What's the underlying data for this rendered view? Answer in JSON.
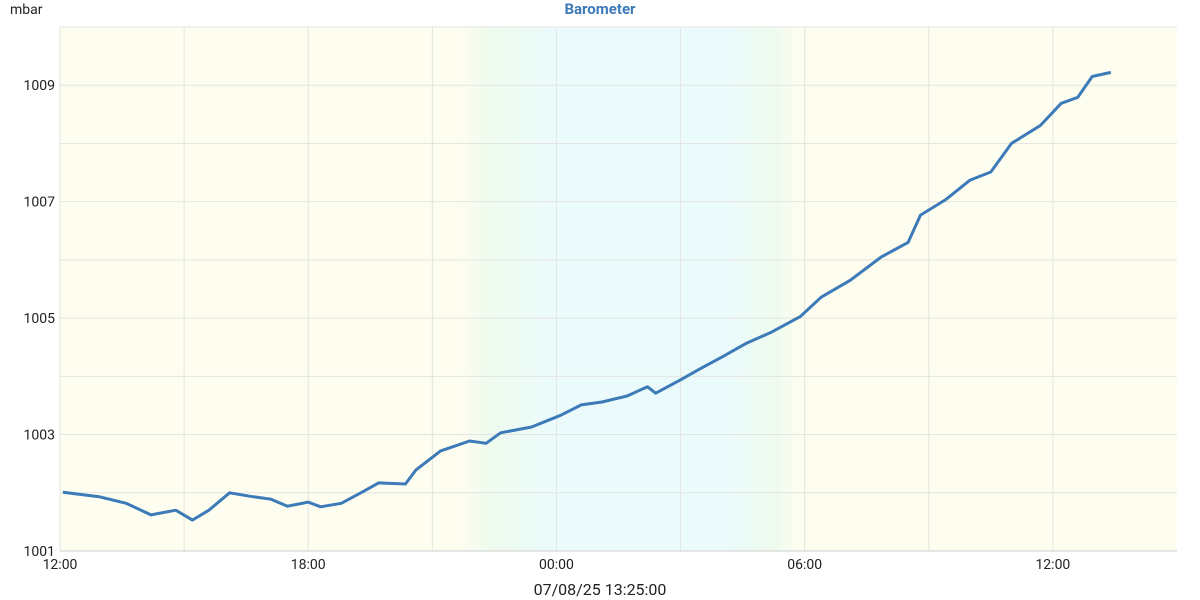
{
  "chart_data": {
    "type": "line",
    "title": "Barometer",
    "y_unit": "mbar",
    "footer": "07/08/25 13:25:00",
    "xlim": [
      0,
      27
    ],
    "xticks": [
      {
        "value": 0,
        "label": "12:00"
      },
      {
        "value": 6,
        "label": "18:00"
      },
      {
        "value": 12,
        "label": "00:00"
      },
      {
        "value": 18,
        "label": "06:00"
      },
      {
        "value": 24,
        "label": "12:00"
      }
    ],
    "x_minor_ticks": [
      3,
      9,
      15,
      21
    ],
    "ylim": [
      1001,
      1010
    ],
    "yticks": [
      1001,
      1003,
      1005,
      1007,
      1009
    ],
    "y_minor_ticks": [
      1002,
      1004,
      1006,
      1008,
      1010
    ],
    "grid": true,
    "series": [
      {
        "name": "Barometer",
        "color": "#3d7ab8",
        "x": [
          0.07,
          0.97,
          1.6,
          2.2,
          2.8,
          3.2,
          3.6,
          4.1,
          4.6,
          5.1,
          5.5,
          6.0,
          6.3,
          6.8,
          7.3,
          7.7,
          8.35,
          8.6,
          9.2,
          9.9,
          10.3,
          10.65,
          11.4,
          12.1,
          12.6,
          13.1,
          13.7,
          14.2,
          14.4,
          15.0,
          15.5,
          16.0,
          16.6,
          17.2,
          17.9,
          18.4,
          19.1,
          19.85,
          20.5,
          20.8,
          21.4,
          22.0,
          22.5,
          23.0,
          23.7,
          24.2,
          24.6,
          24.95,
          25.4
        ],
        "values": [
          1002.01,
          1001.93,
          1001.82,
          1001.62,
          1001.7,
          1001.53,
          1001.7,
          1002.0,
          1001.94,
          1001.89,
          1001.77,
          1001.84,
          1001.76,
          1001.82,
          1002.01,
          1002.17,
          1002.15,
          1002.39,
          1002.72,
          1002.89,
          1002.85,
          1003.03,
          1003.13,
          1003.33,
          1003.51,
          1003.56,
          1003.66,
          1003.82,
          1003.71,
          1003.94,
          1004.14,
          1004.33,
          1004.57,
          1004.76,
          1005.03,
          1005.36,
          1005.65,
          1006.05,
          1006.3,
          1006.77,
          1007.03,
          1007.37,
          1007.51,
          1008.0,
          1008.31,
          1008.69,
          1008.79,
          1009.15,
          1009.22
        ]
      }
    ]
  }
}
